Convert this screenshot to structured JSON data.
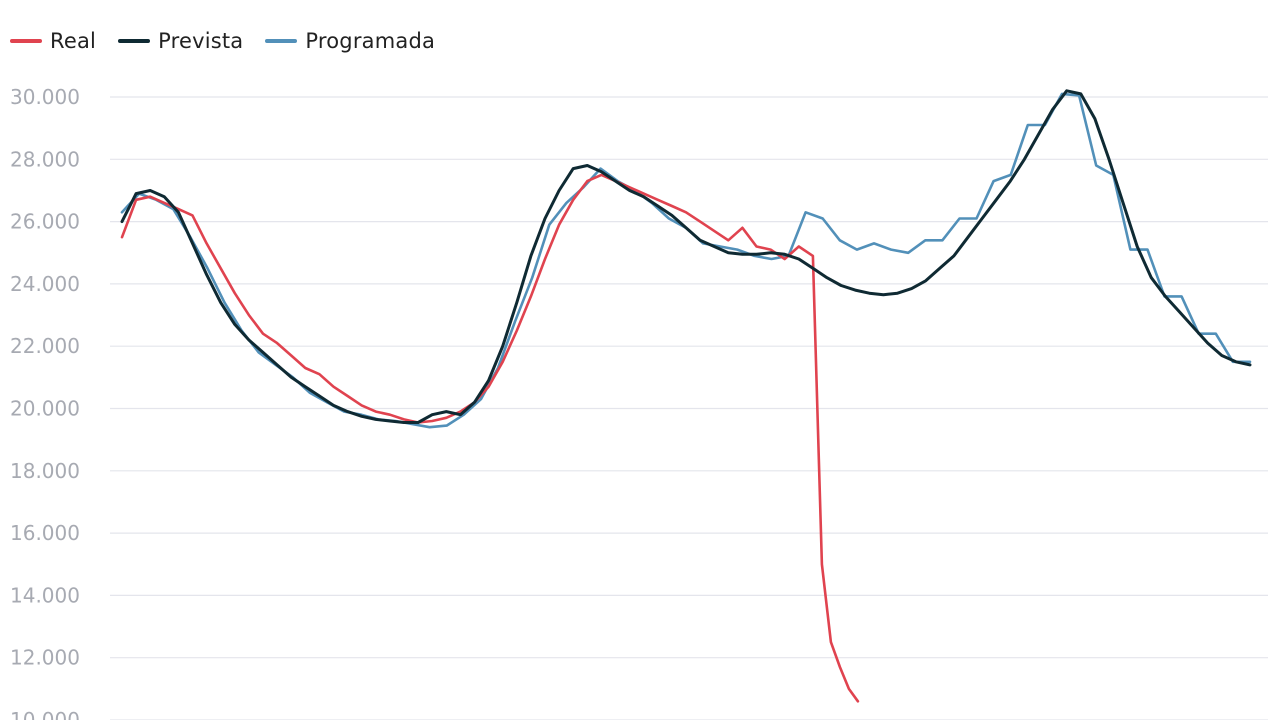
{
  "chart_data": {
    "type": "line",
    "title": "",
    "xlabel": "",
    "ylabel": "",
    "ylim": [
      10000,
      30500
    ],
    "yticks": [
      10000,
      12000,
      14000,
      16000,
      18000,
      20000,
      22000,
      24000,
      26000,
      28000,
      30000
    ],
    "ytick_labels": [
      "10.000",
      "12.000",
      "14.000",
      "16.000",
      "18.000",
      "20.000",
      "22.000",
      "24.000",
      "26.000",
      "28.000",
      "30.000"
    ],
    "grid": true,
    "legend_position": "top-left",
    "x_step_note": "",
    "series": [
      {
        "name": "Real",
        "color": "#e0434f",
        "values": [
          25500,
          26700,
          26800,
          26600,
          26400,
          26200,
          25300,
          24500,
          23700,
          23000,
          22400,
          22100,
          21700,
          21300,
          21100,
          20700,
          20400,
          20100,
          19900,
          19800,
          19650,
          19550,
          19600,
          19700,
          19900,
          20200,
          20700,
          21500,
          22500,
          23600,
          24800,
          25900,
          26700,
          27300,
          27500,
          27300,
          27100,
          26900,
          26700,
          26500,
          26300,
          26000,
          25700,
          25400,
          25800,
          25200,
          25100,
          24800,
          25200,
          24900,
          15000,
          12500,
          11700,
          11000,
          10600
        ]
      },
      {
        "name": "Prevista",
        "color": "#0f2a33",
        "values": [
          26000,
          26900,
          27000,
          26800,
          26300,
          25300,
          24300,
          23400,
          22700,
          22200,
          21800,
          21400,
          21000,
          20700,
          20400,
          20100,
          19900,
          19750,
          19650,
          19600,
          19550,
          19550,
          19800,
          19900,
          19800,
          20200,
          20900,
          22000,
          23400,
          24900,
          26100,
          27000,
          27700,
          27800,
          27600,
          27300,
          27000,
          26800,
          26500,
          26200,
          25800,
          25400,
          25200,
          25000,
          24950,
          24950,
          25000,
          24950,
          24800,
          24500,
          24200,
          23950,
          23800,
          23700,
          23650,
          23700,
          23850,
          24100,
          24500,
          24900,
          25500,
          26100,
          26700,
          27300,
          28000,
          28800,
          29600,
          30200,
          30100,
          29300,
          28000,
          26600,
          25200,
          24200,
          23600,
          23100,
          22600,
          22100,
          21700,
          21500,
          21400
        ]
      },
      {
        "name": "Programada",
        "color": "#5290b9",
        "values": [
          26300,
          26900,
          26700,
          26400,
          25500,
          24500,
          23400,
          22500,
          21800,
          21400,
          21000,
          20500,
          20200,
          19900,
          19800,
          19650,
          19600,
          19500,
          19400,
          19450,
          19800,
          20300,
          21300,
          22800,
          24200,
          25900,
          26600,
          27100,
          27700,
          27300,
          27000,
          26600,
          26100,
          25800,
          25300,
          25200,
          25100,
          24900,
          24800,
          24900,
          26300,
          26100,
          25400,
          25100,
          25300,
          25100,
          25000,
          25400,
          25400,
          26100,
          26100,
          27300,
          27500,
          29100,
          29100,
          30100,
          30050,
          27800,
          27500,
          25100,
          25100,
          23600,
          23600,
          22400,
          22400,
          21500,
          21500
        ]
      }
    ]
  }
}
